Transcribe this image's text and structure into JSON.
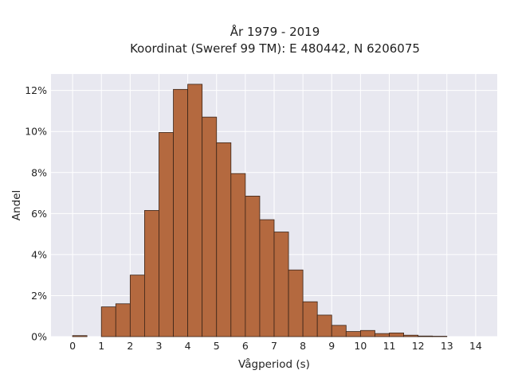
{
  "chart_data": {
    "type": "bar",
    "title": "År 1979 - 2019",
    "subtitle": "Koordinat (Sweref 99 TM): E 480442, N 6206075",
    "xlabel": "Vågperiod (s)",
    "ylabel": "Andel",
    "xlim": [
      -0.75,
      14.75
    ],
    "ylim": [
      0,
      12.8
    ],
    "x_ticks": [
      0,
      1,
      2,
      3,
      4,
      5,
      6,
      7,
      8,
      9,
      10,
      11,
      12,
      13,
      14
    ],
    "y_ticks": [
      0,
      2,
      4,
      6,
      8,
      10,
      12
    ],
    "y_tick_labels": [
      "0%",
      "2%",
      "4%",
      "6%",
      "8%",
      "10%",
      "12%"
    ],
    "grid": true,
    "bin_width": 0.5,
    "bin_starts": [
      0,
      1,
      1.5,
      2,
      2.5,
      3,
      3.5,
      4,
      4.5,
      5,
      5.5,
      6,
      6.5,
      7,
      7.5,
      8,
      8.5,
      9,
      9.5,
      10,
      10.5,
      11,
      11.5,
      12,
      12.5
    ],
    "values": [
      0.05,
      1.45,
      1.6,
      3.0,
      6.15,
      9.95,
      12.05,
      12.3,
      10.7,
      9.45,
      7.95,
      6.85,
      5.7,
      5.1,
      3.25,
      1.7,
      1.05,
      0.55,
      0.25,
      0.3,
      0.15,
      0.18,
      0.07,
      0.03,
      0.02
    ],
    "colors": {
      "bar_fill": "#b4693f",
      "bar_stroke": "#3a2418",
      "plot_bg": "#e8e8f0",
      "grid": "#ffffff"
    }
  }
}
